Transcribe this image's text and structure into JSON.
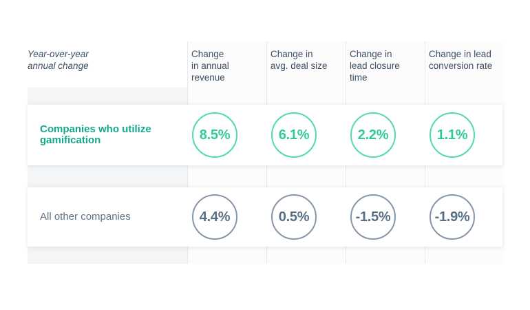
{
  "table": {
    "corner_label": {
      "lines": [
        "Year-over-year",
        "annual change"
      ]
    },
    "columns": [
      {
        "id": "annual-revenue",
        "label": "Change in annual revenue",
        "lines": [
          "Change",
          "in annual",
          "revenue"
        ]
      },
      {
        "id": "avg-deal-size",
        "label": "Change in avg. deal size",
        "lines": [
          "Change in",
          "avg. deal size"
        ]
      },
      {
        "id": "lead-closure-time",
        "label": "Change in lead closure time",
        "lines": [
          "Change in",
          "lead closure",
          "time"
        ]
      },
      {
        "id": "lead-conversion-rate",
        "label": "Change in lead conversion rate",
        "lines": [
          "Change in lead",
          "conversion rate"
        ]
      }
    ],
    "rows": [
      {
        "id": "gamification",
        "label": "Companies who utilize gamification",
        "label_lines": [
          "Companies who utilize",
          "gamification"
        ],
        "theme": "green",
        "values": [
          "8.5%",
          "6.1%",
          "2.2%",
          "1.1%"
        ]
      },
      {
        "id": "all-others",
        "label": "All other companies",
        "label_lines": [
          "All other companies"
        ],
        "theme": "slate",
        "values": [
          "4.4%",
          "0.5%",
          "-1.5%",
          "-1.9%"
        ]
      }
    ]
  },
  "chart_data": {
    "type": "table",
    "title": "Year-over-year annual change",
    "categories": [
      "Change in annual revenue",
      "Change in avg. deal size",
      "Change in lead closure time",
      "Change in lead conversion rate"
    ],
    "series": [
      {
        "name": "Companies who utilize gamification",
        "values": [
          8.5,
          6.1,
          2.2,
          1.1
        ],
        "unit": "%"
      },
      {
        "name": "All other companies",
        "values": [
          4.4,
          0.5,
          -1.5,
          -1.9
        ],
        "unit": "%"
      }
    ],
    "legend_position": "left-row-labels",
    "grid": "column-strips"
  },
  "colors": {
    "page_background": "#ffffff",
    "mat_background": "#f4f5f6",
    "strip_background": "#fcfcfd",
    "divider_line": "#e7e8ea",
    "header_text": "#3d4e61",
    "green_label": "#18a78b",
    "green_circle_border": "#52daa8",
    "green_value": "#31cb99",
    "slate_label": "#5e7287",
    "slate_circle_border": "#8696a8",
    "slate_value": "#5a6e84"
  }
}
